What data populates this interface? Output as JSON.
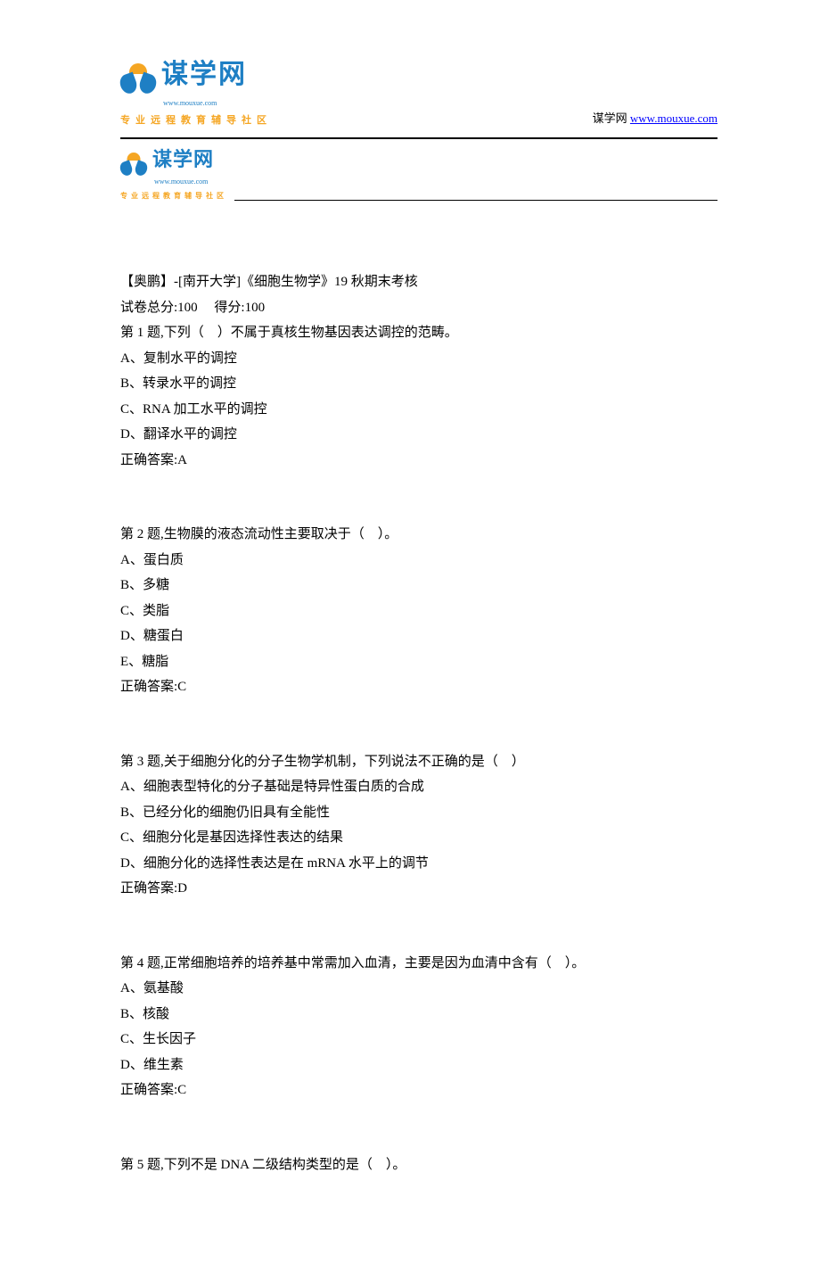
{
  "header": {
    "logo": {
      "main_text": "谋学网",
      "url_text": "www.mouxue.com",
      "tagline": "专业远程教育辅导社区"
    },
    "site_label": "谋学网 ",
    "site_link_text": "www.mouxue.com",
    "site_link_href": "http://www.mouxue.com"
  },
  "exam": {
    "title": "【奥鹏】-[南开大学]《细胞生物学》19 秋期末考核",
    "total_score_label": "试卷总分:100     得分:100"
  },
  "questions": [
    {
      "stem": "第 1 题,下列（    ）不属于真核生物基因表达调控的范畴。",
      "options": [
        "A、复制水平的调控",
        "B、转录水平的调控",
        "C、RNA 加工水平的调控",
        "D、翻译水平的调控"
      ],
      "answer": "正确答案:A"
    },
    {
      "stem": "第 2 题,生物膜的液态流动性主要取决于（    ）。",
      "options": [
        "A、蛋白质",
        "B、多糖",
        "C、类脂",
        "D、糖蛋白",
        "E、糖脂"
      ],
      "answer": "正确答案:C"
    },
    {
      "stem": "第 3 题,关于细胞分化的分子生物学机制，下列说法不正确的是（    ）",
      "options": [
        "A、细胞表型特化的分子基础是特异性蛋白质的合成",
        "B、已经分化的细胞仍旧具有全能性",
        "C、细胞分化是基因选择性表达的结果",
        "D、细胞分化的选择性表达是在 mRNA 水平上的调节"
      ],
      "answer": "正确答案:D"
    },
    {
      "stem": "第 4 题,正常细胞培养的培养基中常需加入血清，主要是因为血清中含有（    ）。",
      "options": [
        "A、氨基酸",
        "B、核酸",
        "C、生长因子",
        "D、维生素"
      ],
      "answer": "正确答案:C"
    },
    {
      "stem": "第 5 题,下列不是 DNA 二级结构类型的是（    ）。",
      "options": [],
      "answer": ""
    }
  ]
}
